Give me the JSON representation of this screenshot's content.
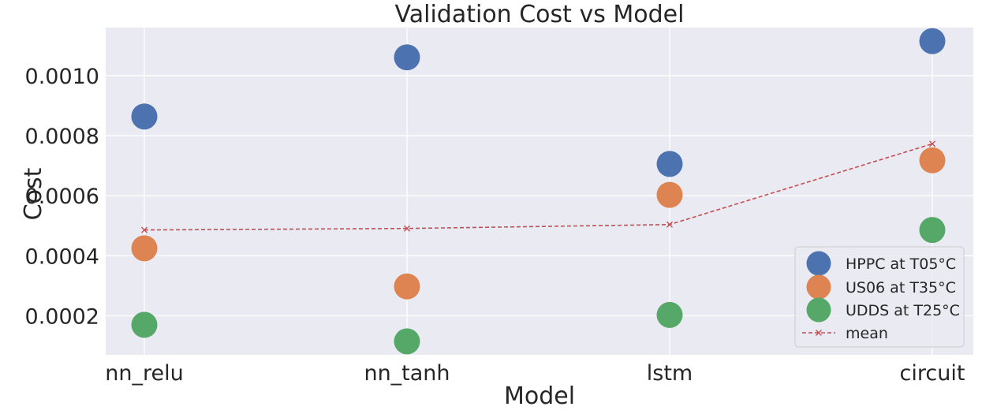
{
  "chart_data": {
    "type": "scatter",
    "title": "Validation Cost vs Model",
    "xlabel": "Model",
    "ylabel": "Cost",
    "categories": [
      "nn_relu",
      "nn_tanh",
      "lstm",
      "circuit"
    ],
    "ylim": [
      7e-05,
      0.00116
    ],
    "yticks": [
      0.0002,
      0.0004,
      0.0006,
      0.0008,
      0.001
    ],
    "ytick_labels": [
      "0.0002",
      "0.0004",
      "0.0006",
      "0.0008",
      "0.0010"
    ],
    "grid": true,
    "legend_position": "lower-right",
    "series": [
      {
        "name": "HPPC at T05°C",
        "kind": "marker",
        "color": "#4c72b0",
        "values": [
          0.000864,
          0.001061,
          0.000706,
          0.001115
        ]
      },
      {
        "name": "US06 at T35°C",
        "kind": "marker",
        "color": "#dd8452",
        "values": [
          0.000425,
          0.000298,
          0.000603,
          0.000718
        ]
      },
      {
        "name": "UDDS at T25°C",
        "kind": "marker",
        "color": "#55a868",
        "values": [
          0.00017,
          0.000115,
          0.000203,
          0.000486
        ]
      },
      {
        "name": "mean",
        "kind": "line",
        "color": "#c44e52",
        "values": [
          0.000486,
          0.000491,
          0.000504,
          0.000773
        ]
      }
    ]
  }
}
